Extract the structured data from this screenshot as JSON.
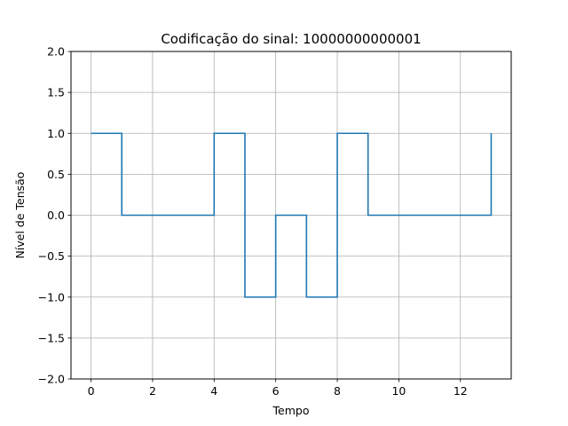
{
  "chart_data": {
    "type": "line",
    "drawstyle": "step-post",
    "title": "Codificação do sinal: 10000000000001",
    "xlabel": "Tempo",
    "ylabel": "Nível de Tensão",
    "xlim": [
      -0.65,
      13.65
    ],
    "ylim": [
      -2.0,
      2.0
    ],
    "x_ticks": [
      0,
      2,
      4,
      6,
      8,
      10,
      12
    ],
    "y_ticks": [
      -2.0,
      -1.5,
      -1.0,
      -0.5,
      0.0,
      0.5,
      1.0,
      1.5,
      2.0
    ],
    "x_tick_labels": [
      "0",
      "2",
      "4",
      "6",
      "8",
      "10",
      "12"
    ],
    "y_tick_labels": [
      "−2.0",
      "−1.5",
      "−1.0",
      "−0.5",
      "0.0",
      "0.5",
      "1.0",
      "1.5",
      "2.0"
    ],
    "grid": true,
    "series": [
      {
        "color": "#1f77b4",
        "x": [
          0,
          1,
          2,
          3,
          4,
          5,
          6,
          7,
          8,
          9,
          10,
          11,
          12,
          13
        ],
        "y": [
          1,
          0,
          0,
          0,
          1,
          -1,
          0,
          -1,
          1,
          0,
          0,
          0,
          0,
          1
        ]
      }
    ]
  }
}
